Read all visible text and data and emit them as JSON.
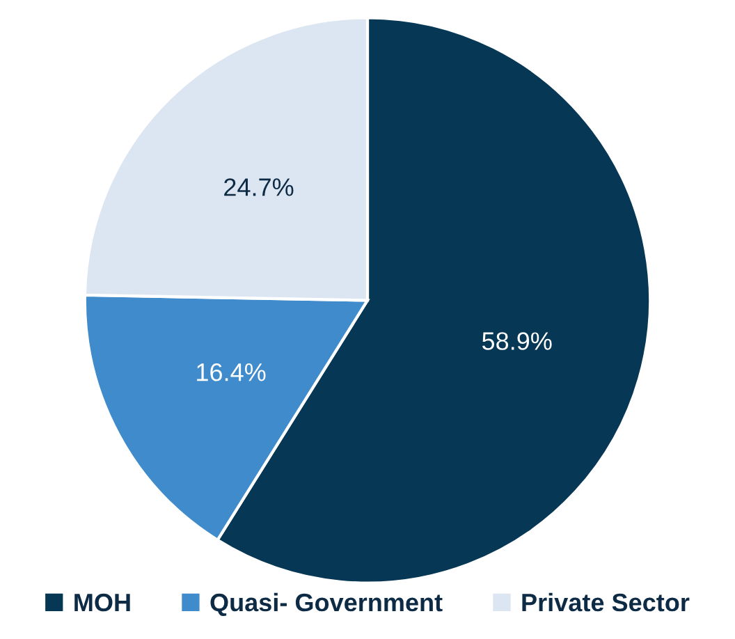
{
  "chart_data": {
    "type": "pie",
    "categories": [
      "MOH",
      "Quasi- Government",
      "Private Sector"
    ],
    "values": [
      58.9,
      16.4,
      24.7
    ],
    "colors": [
      "#063856",
      "#408bcb",
      "#dce5f2"
    ],
    "value_labels": [
      "58.9%",
      "16.4%",
      "24.7%"
    ],
    "legend": "bottom"
  }
}
